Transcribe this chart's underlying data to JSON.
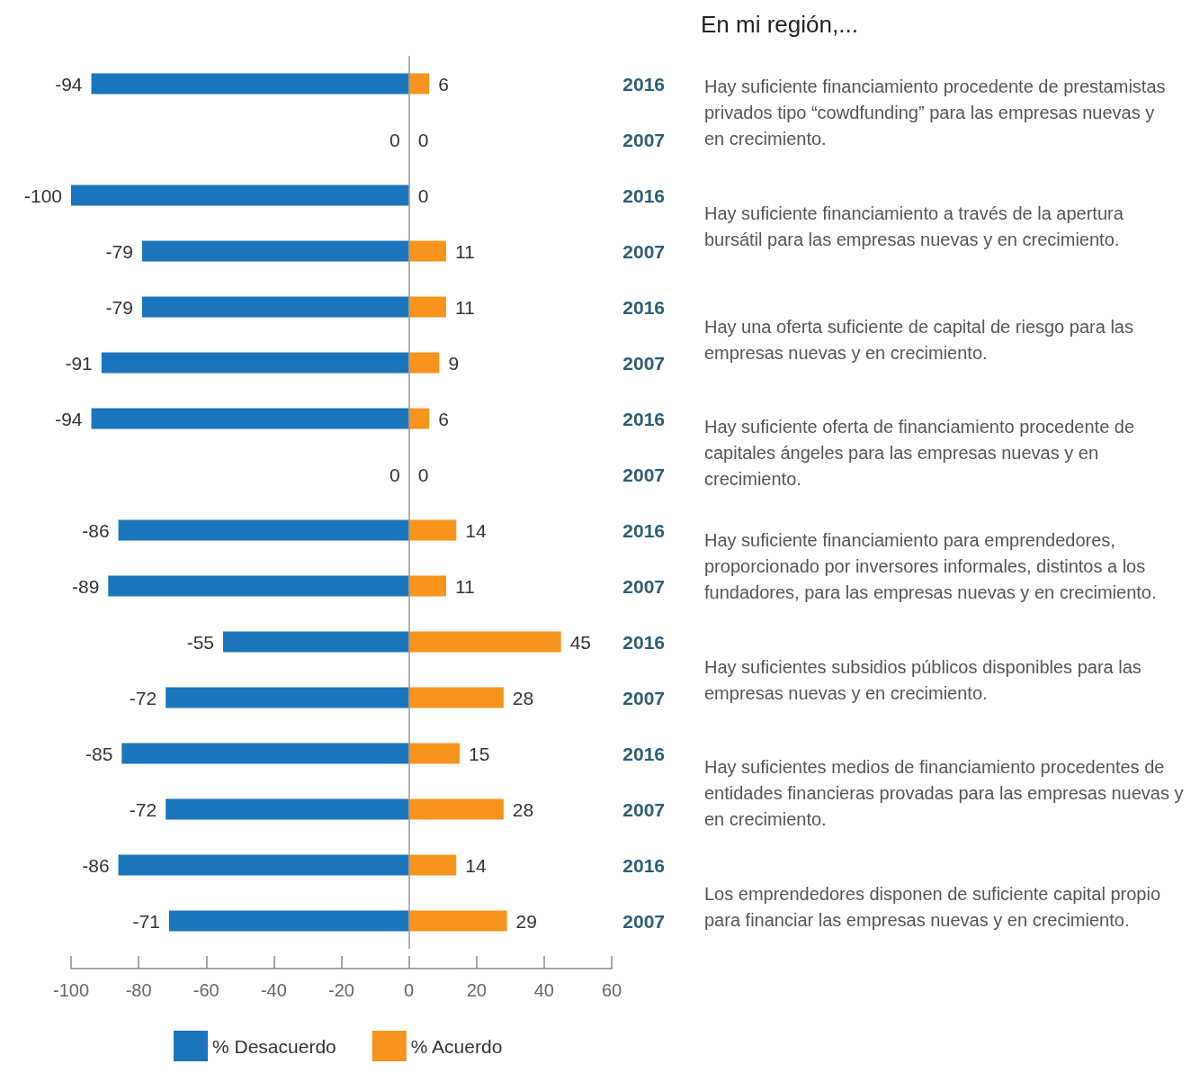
{
  "chart_data": {
    "type": "bar",
    "orientation": "horizontal",
    "stacked": true,
    "title": "En mi región,...",
    "categories": [
      "2016",
      "2007",
      "2016",
      "2007",
      "2016",
      "2007",
      "2016",
      "2007",
      "2016",
      "2007",
      "2016",
      "2007",
      "2016",
      "2007",
      "2016",
      "2007"
    ],
    "series": [
      {
        "name": "% Desacuerdo",
        "color": "#1a75bc",
        "values": [
          -94,
          0,
          -100,
          -79,
          -79,
          -91,
          -94,
          0,
          -86,
          -89,
          -55,
          -72,
          -85,
          -72,
          -86,
          -71
        ]
      },
      {
        "name": "% Acuerdo",
        "color": "#f7941d",
        "values": [
          6,
          0,
          0,
          11,
          11,
          9,
          6,
          0,
          14,
          11,
          45,
          28,
          15,
          28,
          14,
          29
        ]
      }
    ],
    "xlim": [
      -100,
      60
    ],
    "xticks": [
      -100,
      -80,
      -60,
      -40,
      -20,
      0,
      20,
      40,
      60
    ],
    "data_labels": true,
    "legend": "bottom",
    "ref_lines": [
      {
        "axis": "x",
        "value": 0
      }
    ],
    "annotations": [
      "Hay suficiente financiamiento procedente de prestamistas privados tipo “cowdfunding” para las empresas nuevas y en crecimiento.",
      "Hay suficiente financiamiento a través de la apertura bursátil para las empresas nuevas y en crecimiento.",
      "Hay una oferta suficiente de capital de riesgo para las empresas nuevas y en crecimiento.",
      "Hay suficiente oferta de financiamiento procedente de capitales ángeles para las empresas nuevas y en crecimiento.",
      "Hay suficiente financiamiento para emprendedores, proporcionado por inversores informales, distintos a los fundadores, para las empresas nuevas y en crecimiento.",
      "Hay suficientes subsidios públicos disponibles para las empresas nuevas y en crecimiento.",
      "Hay suficientes medios de financiamiento procedentes de entidades financieras provadas para las empresas nuevas y en crecimiento.",
      "Los emprendedores disponen de suficiente capital propio para financiar las empresas nuevas y en crecimiento."
    ]
  }
}
